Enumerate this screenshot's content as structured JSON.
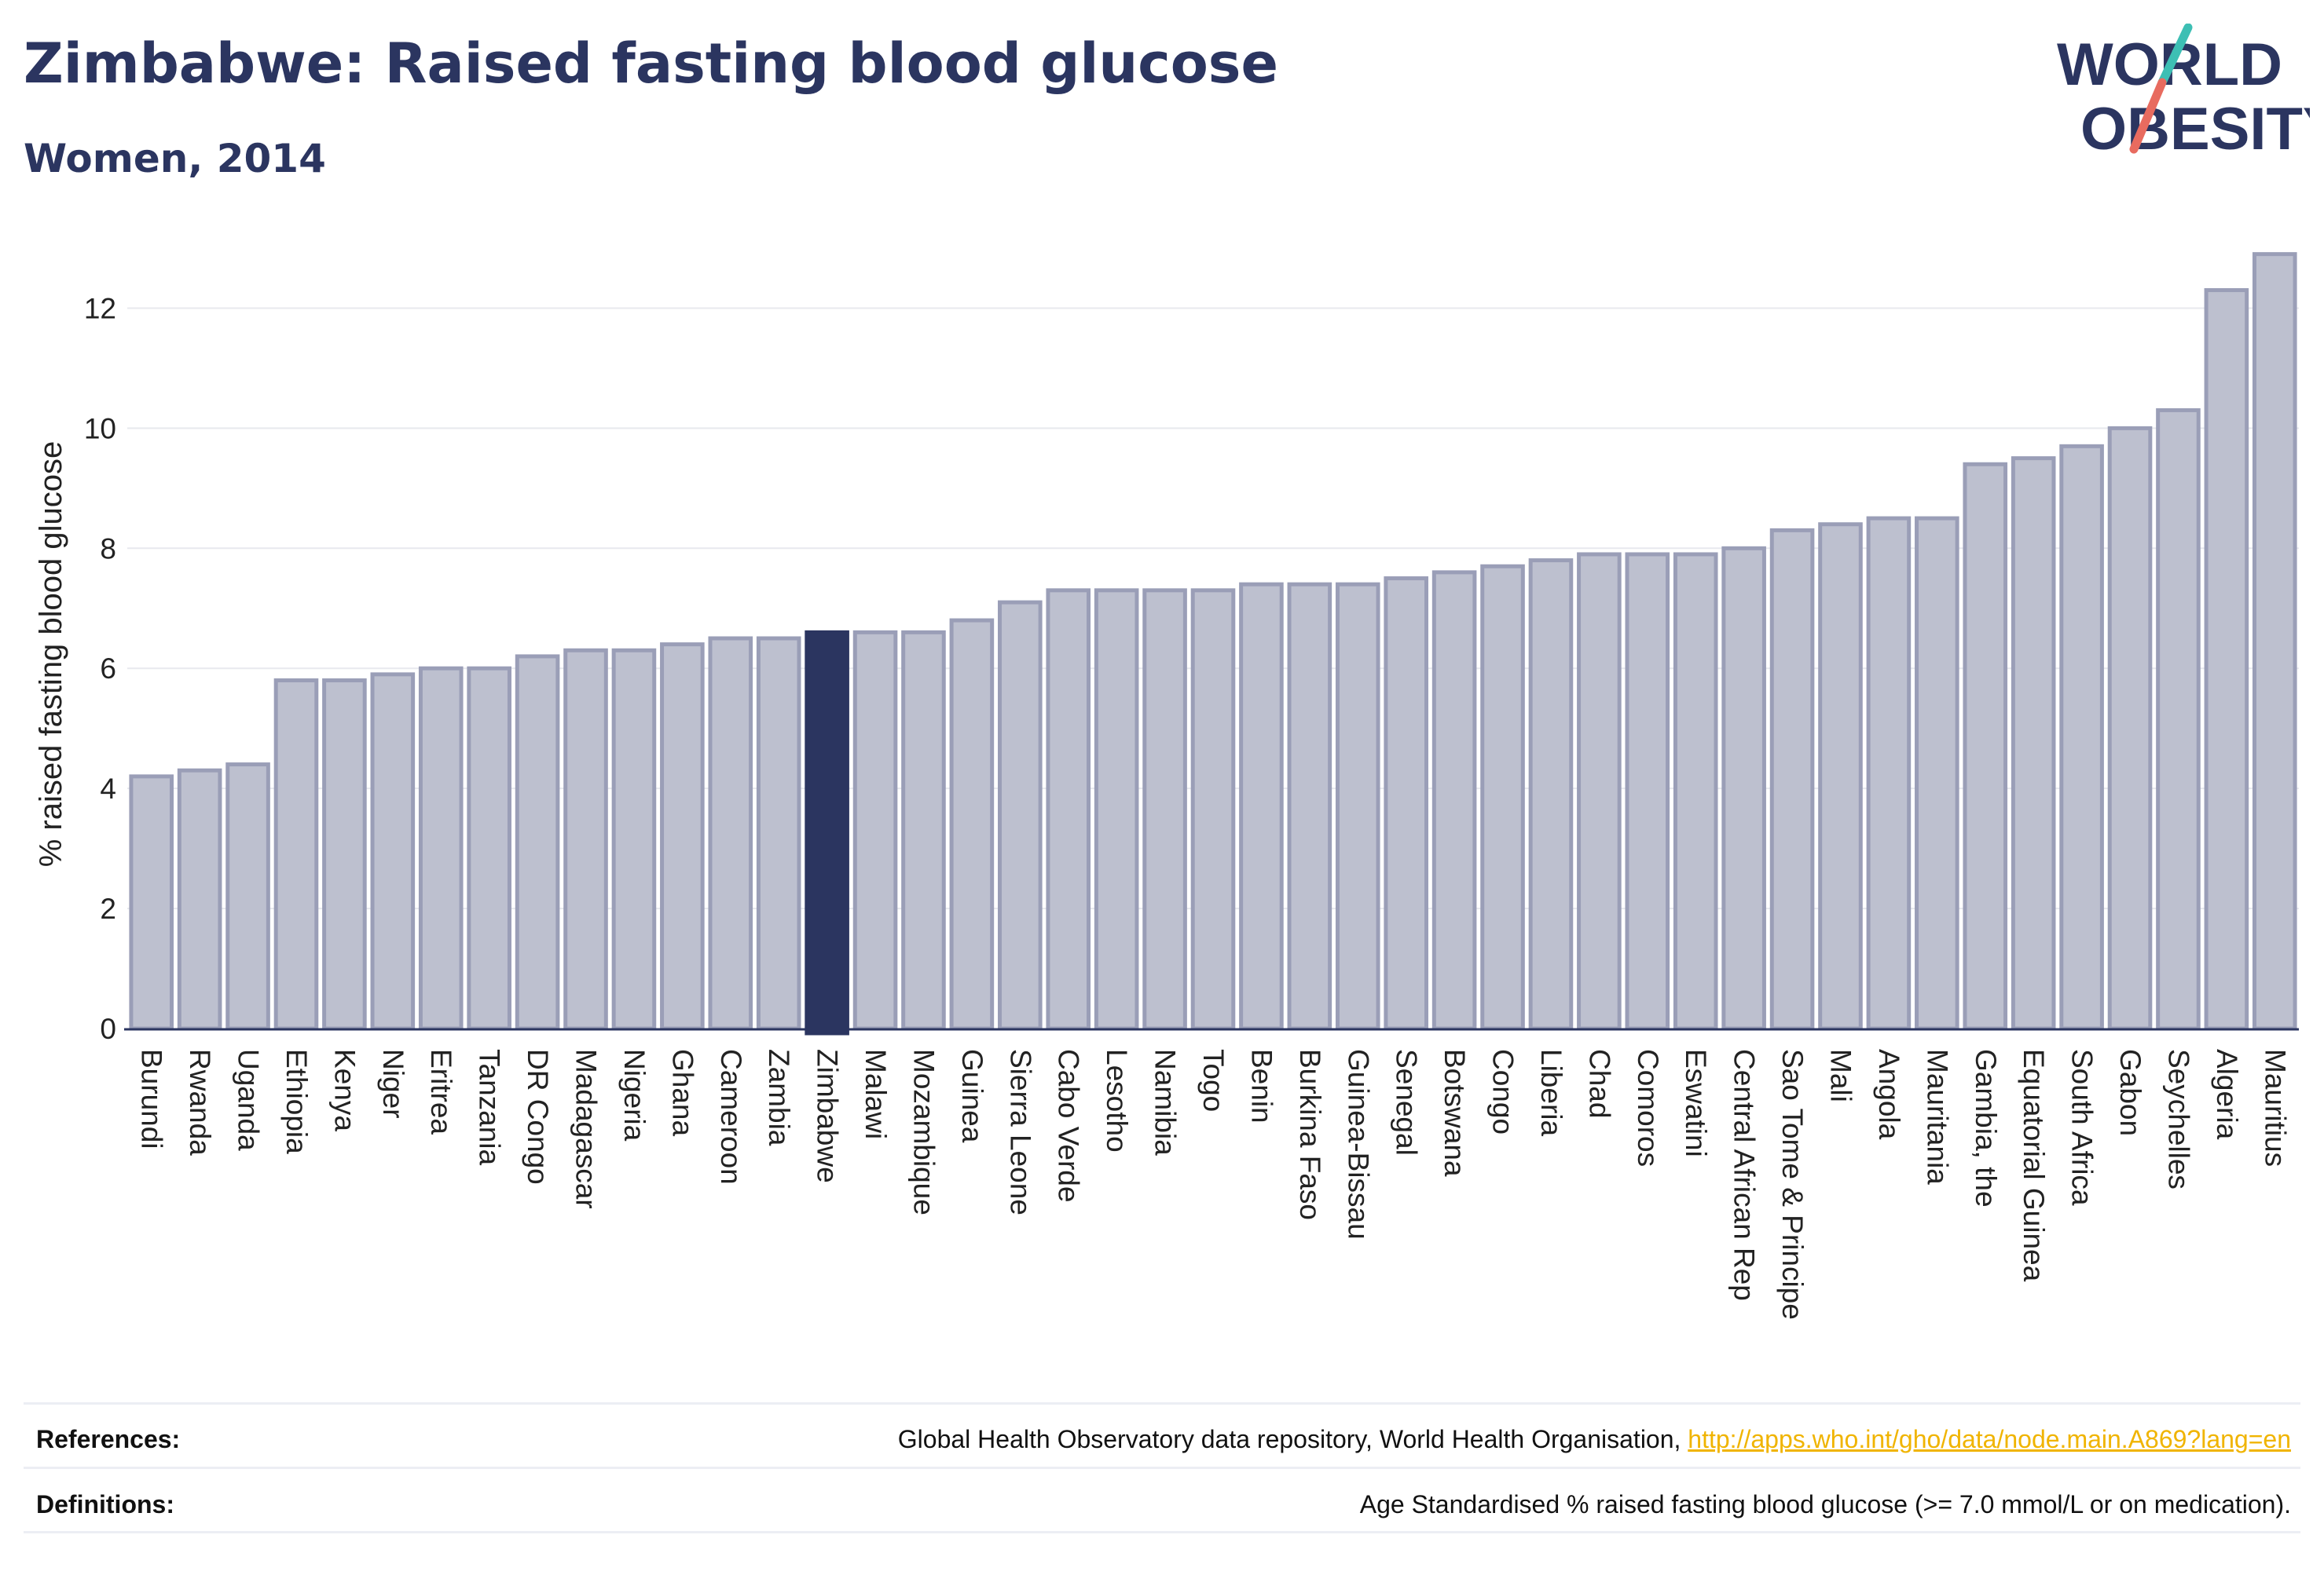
{
  "header": {
    "title": "Zimbabwe: Raised fasting blood glucose",
    "subtitle": "Women, 2014"
  },
  "logo": {
    "line1": "WORLD",
    "line2": "OBESITY"
  },
  "colors": {
    "text": "#2b3560",
    "bar": "#bdc0cf",
    "bar_border": "#9a9eb7",
    "highlight": "#2b3560",
    "grid": "#e8e9ee",
    "link": "#f0b400",
    "logo_teal": "#3dbfb4",
    "logo_coral": "#e86b5f"
  },
  "chart_data": {
    "type": "bar",
    "ylabel": "% raised fasting blood glucose",
    "ylim": [
      0,
      13
    ],
    "yticks": [
      0,
      2,
      4,
      6,
      8,
      10,
      12
    ],
    "grid": true,
    "highlight": "Zimbabwe",
    "categories": [
      "Burundi",
      "Rwanda",
      "Uganda",
      "Ethiopia",
      "Kenya",
      "Niger",
      "Eritrea",
      "Tanzania",
      "DR Congo",
      "Madagascar",
      "Nigeria",
      "Ghana",
      "Cameroon",
      "Zambia",
      "Zimbabwe",
      "Malawi",
      "Mozambique",
      "Guinea",
      "Sierra Leone",
      "Cabo Verde",
      "Lesotho",
      "Namibia",
      "Togo",
      "Benin",
      "Burkina Faso",
      "Guinea-Bissau",
      "Senegal",
      "Botswana",
      "Congo",
      "Liberia",
      "Chad",
      "Comoros",
      "Eswatini",
      "Central African Rep",
      "Sao Tome & Principe",
      "Mali",
      "Angola",
      "Mauritania",
      "Gambia, the",
      "Equatorial Guinea",
      "South Africa",
      "Gabon",
      "Seychelles",
      "Algeria",
      "Mauritius"
    ],
    "values": [
      4.2,
      4.3,
      4.4,
      5.8,
      5.8,
      5.9,
      6.0,
      6.0,
      6.2,
      6.3,
      6.3,
      6.4,
      6.5,
      6.5,
      6.6,
      6.6,
      6.6,
      6.8,
      7.1,
      7.3,
      7.3,
      7.3,
      7.3,
      7.4,
      7.4,
      7.4,
      7.5,
      7.6,
      7.7,
      7.8,
      7.9,
      7.9,
      7.9,
      8.0,
      8.3,
      8.4,
      8.5,
      8.5,
      9.4,
      9.5,
      9.7,
      10.0,
      10.3,
      12.3,
      12.9
    ]
  },
  "footer": {
    "references_label": "References:",
    "references_text": "Global Health Observatory data repository, World Health Organisation, ",
    "references_link": "http://apps.who.int/gho/data/node.main.A869?lang=en",
    "definitions_label": "Definitions:",
    "definitions_text": "Age Standardised % raised fasting blood glucose (>= 7.0 mmol/L or on medication)."
  }
}
